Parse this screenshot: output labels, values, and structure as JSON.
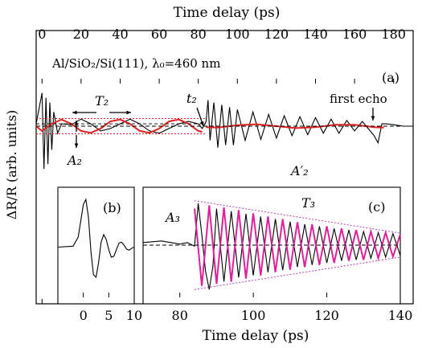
{
  "chart_data": [
    {
      "id": "a",
      "panel_label": "(a)",
      "type": "line",
      "xlabel": "Time delay (ps)",
      "ylabel": "ΔR/R (arb. units)",
      "xlim": [
        -3,
        190
      ],
      "ylim": [
        -1,
        1
      ],
      "x_ticks": [
        0,
        20,
        40,
        60,
        80,
        100,
        120,
        140,
        160,
        180
      ],
      "sample_label": "Al/SiO₂/Si(111), λ₀=460 nm",
      "annotations": {
        "period_label": "T₂",
        "amplitude_label": "A₂",
        "time_label": "t₂",
        "echo_label": "first echo",
        "amplitude2_label": "A′₂"
      },
      "series": [
        {
          "color": "#000000",
          "x": [
            -3,
            0,
            1,
            2,
            3,
            4,
            5,
            6,
            8,
            10,
            15,
            20,
            25,
            30,
            35,
            40,
            45,
            50,
            55,
            60,
            65,
            70,
            75,
            80,
            82,
            84,
            85,
            86,
            88,
            90,
            92,
            94,
            96,
            98,
            100,
            104,
            108,
            112,
            116,
            120,
            124,
            128,
            132,
            136,
            140,
            144,
            148,
            152,
            156,
            160,
            164,
            168,
            170,
            172,
            174,
            176,
            180,
            185,
            190
          ],
          "y": [
            0.05,
            0.7,
            -0.9,
            0.6,
            -0.8,
            0.5,
            -0.5,
            0.3,
            -0.15,
            0.05,
            0.03,
            0.15,
            0.05,
            -0.1,
            -0.05,
            0.05,
            0.15,
            0.05,
            -0.1,
            -0.15,
            -0.05,
            0.05,
            0.1,
            0.05,
            -0.05,
            0.1,
            0.55,
            -0.3,
            0.5,
            -0.45,
            0.45,
            -0.4,
            0.4,
            -0.4,
            0.35,
            -0.3,
            0.3,
            -0.28,
            0.25,
            -0.25,
            0.22,
            -0.2,
            0.2,
            -0.18,
            0.18,
            -0.15,
            0.15,
            -0.15,
            0.12,
            -0.1,
            0.1,
            -0.1,
            -0.2,
            -0.35,
            0.05,
            0.05,
            0.03,
            0.0,
            0.0
          ]
        },
        {
          "color": "#dd2222",
          "x": [
            -3,
            0,
            5,
            10,
            15,
            20,
            25,
            30,
            35,
            40,
            45,
            50,
            55,
            60,
            65,
            70,
            75,
            80,
            82
          ],
          "y": [
            0.0,
            -0.1,
            0.05,
            0.14,
            0.05,
            -0.1,
            -0.14,
            -0.05,
            0.1,
            0.14,
            0.05,
            -0.1,
            -0.14,
            -0.05,
            0.1,
            0.14,
            0.05,
            -0.1,
            -0.12
          ]
        },
        {
          "color": "#dd2222",
          "x": [
            84,
            90,
            100,
            110,
            120,
            130,
            140,
            150,
            160,
            170,
            175
          ],
          "y": [
            -0.02,
            -0.03,
            0.02,
            0.04,
            0.0,
            -0.04,
            -0.02,
            0.03,
            0.03,
            -0.02,
            -0.03
          ]
        }
      ]
    },
    {
      "id": "b",
      "panel_label": "(b)",
      "type": "line",
      "xlim": [
        -5,
        10
      ],
      "ylim": [
        -1,
        1
      ],
      "x_ticks": [
        0,
        5,
        10
      ],
      "series": [
        {
          "color": "#000000",
          "x": [
            -5,
            -2,
            -1,
            0,
            0.5,
            1,
            1.5,
            2,
            2.5,
            3,
            3.5,
            4,
            4.5,
            5,
            5.5,
            6,
            6.5,
            7,
            7.5,
            8,
            8.5,
            9,
            9.5,
            10
          ],
          "y": [
            0.0,
            0.02,
            0.2,
            0.85,
            0.95,
            0.6,
            -0.1,
            -0.55,
            -0.6,
            -0.3,
            0.1,
            0.25,
            0.15,
            -0.05,
            -0.2,
            -0.18,
            -0.05,
            0.08,
            0.1,
            0.04,
            -0.04,
            -0.06,
            -0.02,
            0.0
          ]
        }
      ]
    },
    {
      "id": "c",
      "panel_label": "(c)",
      "type": "line",
      "xlabel": "Time delay (ps)",
      "xlim": [
        70,
        140
      ],
      "ylim": [
        -1,
        1
      ],
      "x_ticks": [
        80,
        100,
        120,
        140
      ],
      "annotations": {
        "period_label": "T₃",
        "amplitude_label": "A₃"
      },
      "series": [
        {
          "color": "#000000",
          "x": [
            70,
            75,
            80,
            82,
            84,
            85,
            86,
            87,
            88,
            89,
            90,
            92,
            94,
            96,
            98,
            100,
            102,
            104,
            106,
            108,
            110,
            112,
            114,
            116,
            118,
            120,
            122,
            124,
            126,
            128,
            130,
            132,
            134,
            136,
            138,
            140
          ],
          "y": [
            0.05,
            0.08,
            0.02,
            0.05,
            -0.02,
            0.8,
            0.2,
            -0.5,
            -0.85,
            -0.4,
            0.7,
            -0.7,
            0.65,
            -0.62,
            0.6,
            -0.58,
            0.55,
            -0.52,
            0.5,
            -0.48,
            0.45,
            -0.42,
            0.4,
            -0.38,
            0.36,
            -0.34,
            0.32,
            -0.3,
            0.29,
            -0.28,
            0.26,
            -0.25,
            0.24,
            -0.23,
            0.22,
            -0.2
          ]
        },
        {
          "color": "#e0209a",
          "x": [
            84,
            86,
            88,
            90,
            92,
            94,
            96,
            98,
            100,
            102,
            104,
            106,
            108,
            110,
            112,
            114,
            116,
            118,
            120,
            122,
            124,
            126,
            128,
            130,
            132,
            134,
            136,
            138,
            140
          ],
          "y": [
            0.7,
            -0.78,
            0.76,
            -0.74,
            0.72,
            -0.7,
            0.67,
            -0.64,
            0.61,
            -0.58,
            0.55,
            -0.52,
            0.5,
            -0.47,
            0.44,
            -0.42,
            0.4,
            -0.38,
            0.36,
            -0.34,
            0.32,
            -0.3,
            0.29,
            -0.28,
            0.26,
            -0.25,
            0.24,
            -0.22,
            0.21
          ]
        }
      ]
    }
  ]
}
